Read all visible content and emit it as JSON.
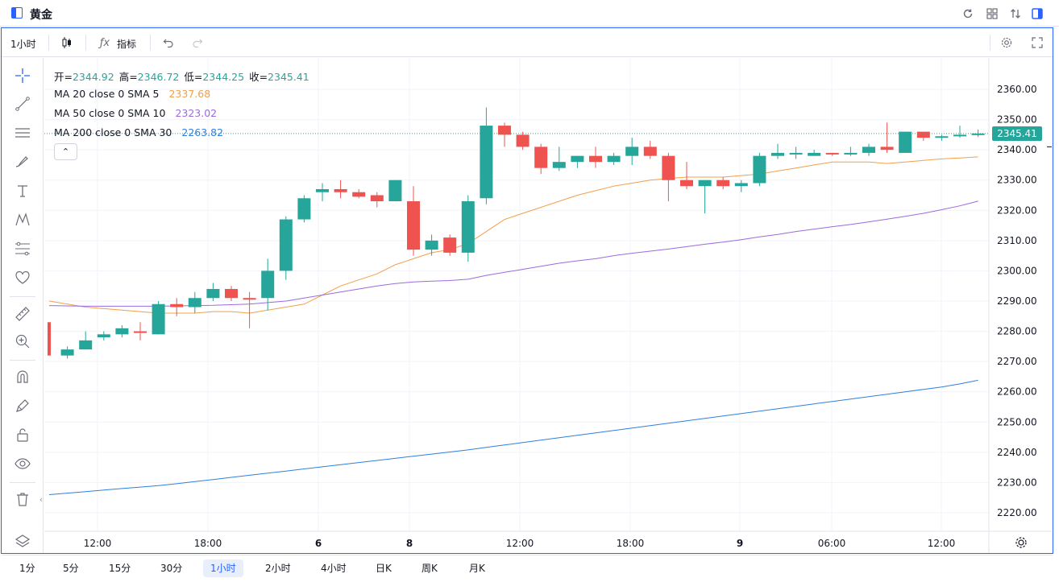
{
  "window": {
    "title": "黄金"
  },
  "toolbar": {
    "interval_label": "1小时",
    "indicators_label": "指标"
  },
  "legend": {
    "ohlc": [
      {
        "label": "开=",
        "value": "2344.92"
      },
      {
        "label": "高=",
        "value": "2346.72"
      },
      {
        "label": "低=",
        "value": "2344.25"
      },
      {
        "label": "收=",
        "value": "2345.41"
      }
    ],
    "ohlc_color": "#26a69a",
    "studies": [
      {
        "label": "MA 20 close 0 SMA 5",
        "value": "2337.68",
        "color": "#f0a04b"
      },
      {
        "label": "MA 50 close 0 SMA 10",
        "value": "2323.02",
        "color": "#9c6ade"
      },
      {
        "label": "MA 200 close 0 SMA 30",
        "value": "2263.82",
        "color": "#2f7fe0"
      }
    ],
    "collapse_glyph": "⌃"
  },
  "last_price": "2345.41",
  "bottom_bar": {
    "intervals": [
      "1分",
      "5分",
      "15分",
      "30分",
      "1小时",
      "2小时",
      "4小时",
      "日K",
      "周K",
      "月K"
    ],
    "active_index": 4
  },
  "colors": {
    "up": "#26a69a",
    "down": "#ef5350",
    "accent": "#2962ff",
    "grid": "#f0f3fa"
  },
  "chart_data": {
    "type": "candlestick",
    "x_ticks": [
      "12:00",
      "18:00",
      "6",
      "8",
      "12:00",
      "18:00",
      "9",
      "06:00",
      "12:00"
    ],
    "x_tick_bold": [
      false,
      false,
      true,
      true,
      false,
      false,
      true,
      false,
      false
    ],
    "y_ticks": [
      "2360.00",
      "2350.00",
      "2340.00",
      "2330.00",
      "2320.00",
      "2310.00",
      "2300.00",
      "2290.00",
      "2280.00",
      "2270.00",
      "2260.00",
      "2250.00",
      "2240.00",
      "2230.00",
      "2220.00"
    ],
    "ylim": [
      2215,
      2365
    ],
    "candles": [
      {
        "o": 2283,
        "h": 2283,
        "l": 2272,
        "c": 2272
      },
      {
        "o": 2272,
        "h": 2275,
        "l": 2271,
        "c": 2274
      },
      {
        "o": 2274,
        "h": 2280,
        "l": 2274,
        "c": 2277
      },
      {
        "o": 2278,
        "h": 2280,
        "l": 2277,
        "c": 2279
      },
      {
        "o": 2279,
        "h": 2282,
        "l": 2278,
        "c": 2281
      },
      {
        "o": 2280,
        "h": 2283,
        "l": 2277,
        "c": 2279.5
      },
      {
        "o": 2279,
        "h": 2290,
        "l": 2279,
        "c": 2289
      },
      {
        "o": 2289,
        "h": 2291,
        "l": 2285,
        "c": 2288
      },
      {
        "o": 2288,
        "h": 2293,
        "l": 2286,
        "c": 2291
      },
      {
        "o": 2291,
        "h": 2296,
        "l": 2290,
        "c": 2294
      },
      {
        "o": 2294,
        "h": 2295,
        "l": 2290,
        "c": 2291
      },
      {
        "o": 2291,
        "h": 2293,
        "l": 2281,
        "c": 2290.5
      },
      {
        "o": 2291,
        "h": 2304,
        "l": 2287,
        "c": 2300
      },
      {
        "o": 2300,
        "h": 2318,
        "l": 2297,
        "c": 2317
      },
      {
        "o": 2317,
        "h": 2325,
        "l": 2316,
        "c": 2324
      },
      {
        "o": 2326,
        "h": 2329,
        "l": 2323,
        "c": 2327
      },
      {
        "o": 2327,
        "h": 2330,
        "l": 2324,
        "c": 2326
      },
      {
        "o": 2326,
        "h": 2327,
        "l": 2324,
        "c": 2324.5
      },
      {
        "o": 2325,
        "h": 2326,
        "l": 2321,
        "c": 2323
      },
      {
        "o": 2323,
        "h": 2330,
        "l": 2323,
        "c": 2330
      },
      {
        "o": 2323,
        "h": 2328,
        "l": 2305,
        "c": 2307
      },
      {
        "o": 2307,
        "h": 2312,
        "l": 2305,
        "c": 2310
      },
      {
        "o": 2311,
        "h": 2312,
        "l": 2305,
        "c": 2306
      },
      {
        "o": 2306,
        "h": 2325,
        "l": 2303,
        "c": 2323
      },
      {
        "o": 2324,
        "h": 2354,
        "l": 2322,
        "c": 2348
      },
      {
        "o": 2348,
        "h": 2349,
        "l": 2341,
        "c": 2345
      },
      {
        "o": 2345,
        "h": 2346,
        "l": 2340,
        "c": 2341
      },
      {
        "o": 2341,
        "h": 2342,
        "l": 2332,
        "c": 2334
      },
      {
        "o": 2334,
        "h": 2341,
        "l": 2333,
        "c": 2336
      },
      {
        "o": 2336,
        "h": 2338,
        "l": 2334,
        "c": 2338
      },
      {
        "o": 2338,
        "h": 2341,
        "l": 2334,
        "c": 2336
      },
      {
        "o": 2336,
        "h": 2339,
        "l": 2335,
        "c": 2338
      },
      {
        "o": 2338,
        "h": 2344,
        "l": 2335,
        "c": 2341
      },
      {
        "o": 2341,
        "h": 2343,
        "l": 2337,
        "c": 2338
      },
      {
        "o": 2338,
        "h": 2339,
        "l": 2323,
        "c": 2330
      },
      {
        "o": 2330,
        "h": 2336,
        "l": 2327,
        "c": 2328
      },
      {
        "o": 2328,
        "h": 2330,
        "l": 2319,
        "c": 2330
      },
      {
        "o": 2330,
        "h": 2331,
        "l": 2327,
        "c": 2328
      },
      {
        "o": 2328,
        "h": 2330,
        "l": 2326,
        "c": 2329
      },
      {
        "o": 2329,
        "h": 2339,
        "l": 2328,
        "c": 2338
      },
      {
        "o": 2338,
        "h": 2342,
        "l": 2337,
        "c": 2339
      },
      {
        "o": 2339,
        "h": 2341,
        "l": 2337,
        "c": 2339
      },
      {
        "o": 2338,
        "h": 2340,
        "l": 2338,
        "c": 2339
      },
      {
        "o": 2339,
        "h": 2339,
        "l": 2338,
        "c": 2338.5
      },
      {
        "o": 2339,
        "h": 2341,
        "l": 2338,
        "c": 2339
      },
      {
        "o": 2339,
        "h": 2342,
        "l": 2338,
        "c": 2341
      },
      {
        "o": 2341,
        "h": 2349,
        "l": 2339,
        "c": 2340
      },
      {
        "o": 2339,
        "h": 2346,
        "l": 2339,
        "c": 2346
      },
      {
        "o": 2346,
        "h": 2346,
        "l": 2343,
        "c": 2344
      },
      {
        "o": 2344,
        "h": 2345,
        "l": 2343,
        "c": 2344.5
      },
      {
        "o": 2344.5,
        "h": 2348,
        "l": 2344,
        "c": 2345
      },
      {
        "o": 2344.92,
        "h": 2346.72,
        "l": 2344.25,
        "c": 2345.41
      }
    ],
    "series": [
      {
        "name": "MA 20 close 0 SMA 5",
        "color": "#f0a04b",
        "values": [
          2290,
          2289,
          2288,
          2287.5,
          2287,
          2286.5,
          2286,
          2286,
          2286,
          2286.5,
          2286.5,
          2286,
          2287,
          2288,
          2289,
          2292,
          2295,
          2297,
          2299,
          2302,
          2304,
          2306,
          2307,
          2309,
          2313,
          2317,
          2319,
          2321,
          2323,
          2325,
          2326.5,
          2328,
          2329,
          2330,
          2330.5,
          2331,
          2331,
          2331,
          2331.5,
          2332,
          2333,
          2334,
          2335,
          2336,
          2336,
          2336,
          2335.5,
          2336,
          2336.5,
          2337,
          2337.3,
          2337.68
        ]
      },
      {
        "name": "MA 50 close 0 SMA 10",
        "color": "#9c6ade",
        "values": [
          2288.5,
          2288.4,
          2288.3,
          2288.3,
          2288.3,
          2288.3,
          2288.3,
          2288.4,
          2288.5,
          2288.6,
          2288.8,
          2289,
          2289.5,
          2290,
          2291,
          2292,
          2293,
          2294,
          2295,
          2295.8,
          2296.3,
          2296.6,
          2296.8,
          2297.2,
          2298.5,
          2299.5,
          2300.5,
          2301.5,
          2302.5,
          2303.3,
          2304,
          2305,
          2305.8,
          2306.5,
          2307.2,
          2308,
          2308.8,
          2309.5,
          2310.3,
          2311.2,
          2312,
          2313,
          2313.8,
          2314.6,
          2315.3,
          2316.2,
          2317.1,
          2318,
          2319,
          2320.2,
          2321.5,
          2323.02
        ]
      },
      {
        "name": "MA 200 close 0 SMA 30",
        "color": "#2f7fe0",
        "values": [
          2226,
          2226.5,
          2227,
          2227.5,
          2228,
          2228.5,
          2229,
          2229.6,
          2230.3,
          2231,
          2231.7,
          2232.4,
          2233.1,
          2233.8,
          2234.5,
          2235.2,
          2235.9,
          2236.6,
          2237.3,
          2238,
          2238.7,
          2239.4,
          2240.1,
          2240.8,
          2241.6,
          2242.4,
          2243.2,
          2244,
          2244.8,
          2245.6,
          2246.4,
          2247.2,
          2248,
          2248.8,
          2249.6,
          2250.4,
          2251.2,
          2252,
          2252.8,
          2253.6,
          2254.4,
          2255.2,
          2256,
          2256.8,
          2257.6,
          2258.4,
          2259.2,
          2260,
          2260.8,
          2261.6,
          2262.6,
          2263.82
        ]
      }
    ]
  }
}
